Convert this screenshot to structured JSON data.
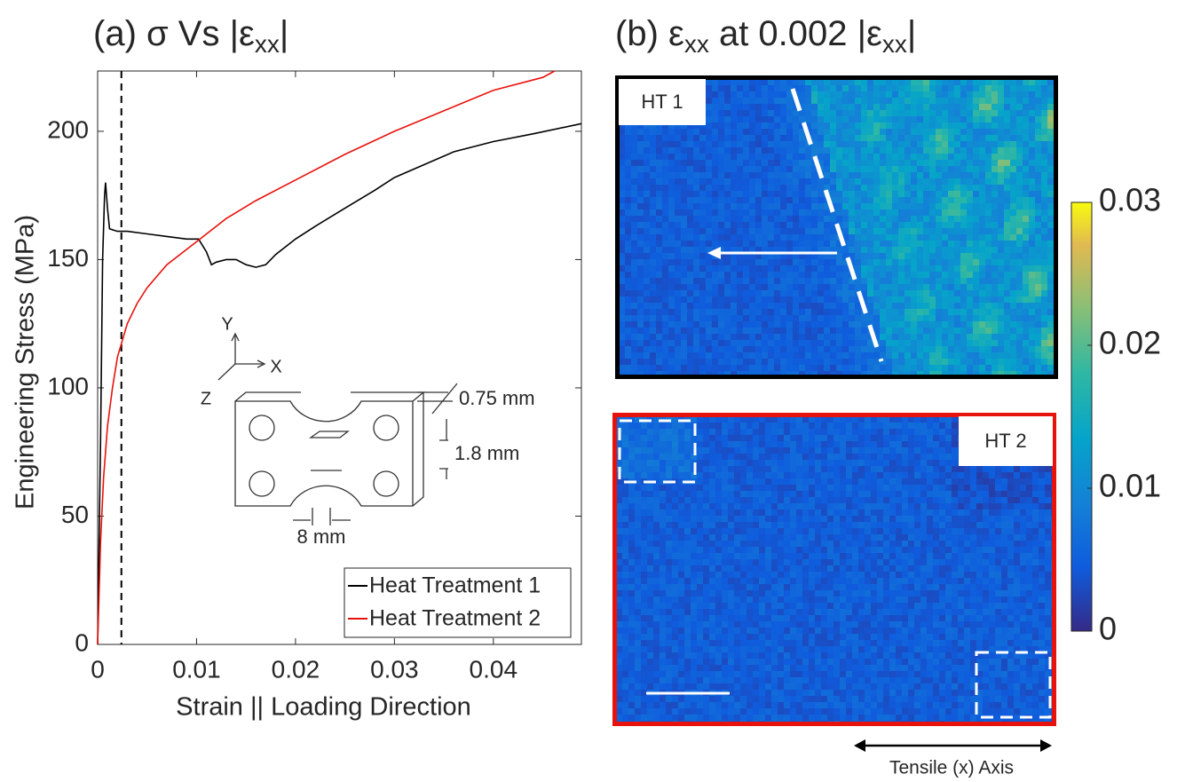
{
  "chart_data": [
    {
      "type": "line",
      "title_parts": [
        "(a) σ Vs |ε",
        "xx",
        "|"
      ],
      "xlabel": "Strain || Loading Direction",
      "ylabel": "Engineering Stress (MPa)",
      "xlim": [
        0,
        0.0489
      ],
      "ylim": [
        0,
        223.5
      ],
      "xticks": [
        0,
        0.01,
        0.02,
        0.03,
        0.04
      ],
      "yticks": [
        0,
        50,
        100,
        150,
        200
      ],
      "legend": "lower right",
      "reference_line": {
        "x": 0.0024,
        "color": "#000000",
        "style": "dashed"
      },
      "series": [
        {
          "name": "Heat Treatment 1",
          "color": "#000000",
          "x": [
            0,
            0.0003,
            0.0005,
            0.0007,
            0.0008,
            0.001,
            0.0012,
            0.002,
            0.003,
            0.005,
            0.007,
            0.009,
            0.0102,
            0.011,
            0.0115,
            0.012,
            0.013,
            0.014,
            0.015,
            0.016,
            0.017,
            0.018,
            0.02,
            0.022,
            0.025,
            0.028,
            0.03,
            0.033,
            0.036,
            0.04,
            0.044,
            0.0489
          ],
          "values": [
            0,
            80,
            150,
            175,
            180,
            170,
            162,
            161,
            161,
            160,
            159,
            158,
            158,
            153,
            148,
            149,
            150,
            150,
            148,
            147,
            148,
            152,
            158,
            163,
            170,
            177,
            182,
            187,
            192,
            196,
            199,
            203
          ]
        },
        {
          "name": "Heat Treatment 2",
          "color": "#e8120c",
          "x": [
            0,
            0.0003,
            0.0006,
            0.001,
            0.0015,
            0.002,
            0.003,
            0.004,
            0.005,
            0.007,
            0.01,
            0.013,
            0.016,
            0.02,
            0.025,
            0.03,
            0.035,
            0.04,
            0.045,
            0.0462
          ],
          "values": [
            0,
            40,
            65,
            85,
            100,
            112,
            125,
            133,
            139,
            148,
            157,
            166,
            173,
            181,
            191,
            200,
            208,
            216,
            221,
            223.5
          ]
        }
      ],
      "inset": {
        "axes": [
          "Y",
          "X",
          "Z"
        ],
        "dimensions": [
          "0.75 mm",
          "1.8 mm",
          "8 mm"
        ]
      }
    },
    {
      "type": "heatmap",
      "title_parts": [
        "(b) ε",
        "xx",
        " at 0.002 |ε",
        "xx",
        "|"
      ],
      "panels": [
        {
          "label": "HT 1",
          "border_color": "#000000"
        },
        {
          "label": "HT 2",
          "border_color": "#e8120c"
        }
      ],
      "colorbar": {
        "lim": [
          0,
          0.03
        ],
        "ticks": [
          0,
          0.01,
          0.02,
          0.03
        ]
      },
      "axis_label": "Tensile (x) Axis"
    }
  ]
}
